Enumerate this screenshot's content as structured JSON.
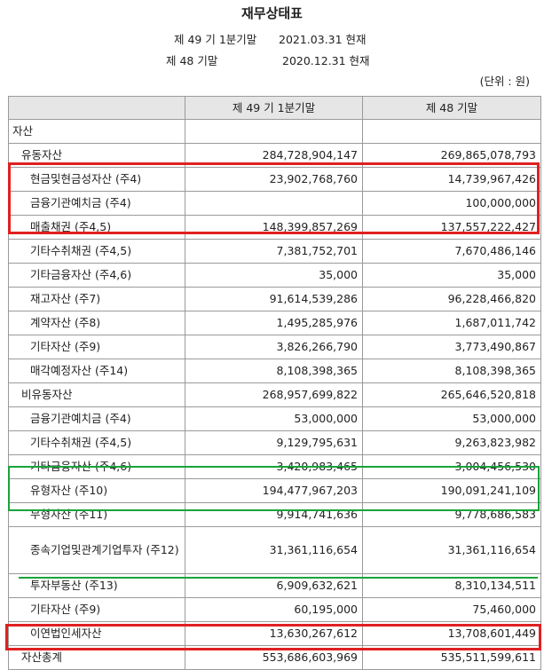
{
  "title": "재무상태표",
  "periods": {
    "current_label": "제 49 기 1분기말",
    "current_date": "2021.03.31 현재",
    "prior_label": "제 48 기말",
    "prior_date": "2020.12.31 현재"
  },
  "unit": "(단위 : 원)",
  "table": {
    "headers": [
      "",
      "제 49 기 1분기말",
      "제 48 기말"
    ],
    "rows": [
      {
        "label": "자산",
        "current": "",
        "prior": ""
      },
      {
        "label": "유동자산",
        "current": "284,728,904,147",
        "prior": "269,865,078,793"
      },
      {
        "label": "현금및현금성자산 (주4)",
        "current": "23,902,768,760",
        "prior": "14,739,967,426"
      },
      {
        "label": "금융기관예치금 (주4)",
        "current": "",
        "prior": "100,000,000"
      },
      {
        "label": "매출채권 (주4,5)",
        "current": "148,399,857,269",
        "prior": "137,557,222,427"
      },
      {
        "label": "기타수취채권 (주4,5)",
        "current": "7,381,752,701",
        "prior": "7,670,486,146"
      },
      {
        "label": "기타금융자산 (주4,6)",
        "current": "35,000",
        "prior": "35,000"
      },
      {
        "label": "재고자산 (주7)",
        "current": "91,614,539,286",
        "prior": "96,228,466,820"
      },
      {
        "label": "계약자산 (주8)",
        "current": "1,495,285,976",
        "prior": "1,687,011,742"
      },
      {
        "label": "기타자산 (주9)",
        "current": "3,826,266,790",
        "prior": "3,773,490,867"
      },
      {
        "label": "매각예정자산 (주14)",
        "current": "8,108,398,365",
        "prior": "8,108,398,365"
      },
      {
        "label": "비유동자산",
        "current": "268,957,699,822",
        "prior": "265,646,520,818"
      },
      {
        "label": "금융기관예치금 (주4)",
        "current": "53,000,000",
        "prior": "53,000,000"
      },
      {
        "label": "기타수취채권 (주4,5)",
        "current": "9,129,795,631",
        "prior": "9,263,823,982"
      },
      {
        "label": "기타금융자산 (주4,6)",
        "current": "3,420,983,465",
        "prior": "3,004,456,530"
      },
      {
        "label": "유형자산 (주10)",
        "current": "194,477,967,203",
        "prior": "190,091,241,109"
      },
      {
        "label": "무형자산 (주11)",
        "current": "9,914,741,636",
        "prior": "9,778,686,583"
      },
      {
        "label": "종속기업및관계기업투자 (주12)",
        "current": "31,361,116,654",
        "prior": "31,361,116,654"
      },
      {
        "label": "투자부동산 (주13)",
        "current": "6,909,632,621",
        "prior": "8,310,134,511"
      },
      {
        "label": "기타자산 (주9)",
        "current": "60,195,000",
        "prior": "75,460,000"
      },
      {
        "label": "이연법인세자산",
        "current": "13,630,267,612",
        "prior": "13,708,601,449"
      },
      {
        "label": "자산총계",
        "current": "553,686,603,969",
        "prior": "535,511,599,611"
      }
    ]
  },
  "highlight_colors": {
    "red": "#e02020",
    "green": "#19a33a"
  }
}
